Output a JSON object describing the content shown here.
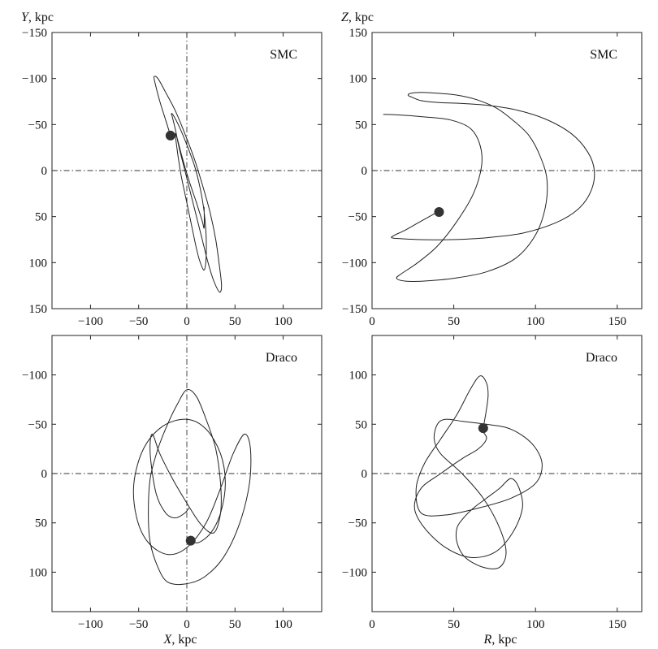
{
  "chart_data": [
    {
      "type": "line",
      "panel_label": "SMC",
      "xlabel": "",
      "ylabel_var": "Y",
      "ylabel_unit": ", kpc",
      "xlim": [
        -140,
        140
      ],
      "ylim": [
        -150,
        150
      ],
      "y_inverted": true,
      "xticks": [
        -100,
        -50,
        0,
        50,
        100
      ],
      "yticks": [
        -150,
        -100,
        -50,
        0,
        50,
        100,
        150
      ],
      "xtick_labels": [
        "−100",
        "−50",
        "0",
        "50",
        "100"
      ],
      "ytick_labels": [
        "−150",
        "−100",
        "−50",
        "0",
        "50",
        "100",
        "150"
      ],
      "reference_lines": {
        "x": 0,
        "y": 0
      },
      "series": [
        {
          "x": [
            -17,
            -22,
            -28,
            -33,
            -34,
            -30,
            -22,
            -12,
            -2,
            8,
            16,
            24,
            30,
            34,
            36,
            34,
            28,
            22,
            16,
            10,
            4,
            -2,
            -8,
            -12,
            -15,
            -16,
            -14,
            -8,
            0,
            8,
            14,
            18,
            20,
            20,
            18,
            14,
            10,
            6,
            2,
            -2,
            -6,
            -9,
            -11,
            -12,
            -10,
            -5,
            2,
            10,
            16,
            18,
            18
          ],
          "y": [
            -38,
            -55,
            -75,
            -95,
            -102,
            -100,
            -85,
            -65,
            -40,
            -12,
            15,
            45,
            75,
            105,
            125,
            132,
            120,
            100,
            75,
            50,
            25,
            0,
            -25,
            -45,
            -58,
            -62,
            -60,
            -48,
            -28,
            -5,
            20,
            45,
            70,
            95,
            108,
            100,
            85,
            65,
            45,
            25,
            5,
            -15,
            -30,
            -40,
            -35,
            -15,
            10,
            35,
            55,
            62,
            40
          ]
        }
      ],
      "marker": {
        "x": -17,
        "y": -38
      }
    },
    {
      "type": "line",
      "panel_label": "SMC",
      "xlabel": "",
      "ylabel_var": "Z",
      "ylabel_unit": ", kpc",
      "xlim": [
        0,
        165
      ],
      "ylim": [
        -150,
        150
      ],
      "y_inverted": false,
      "xticks": [
        0,
        50,
        100,
        150
      ],
      "yticks": [
        -150,
        -100,
        -50,
        0,
        50,
        100,
        150
      ],
      "xtick_labels": [
        "0",
        "50",
        "100",
        "150"
      ],
      "ytick_labels": [
        "−150",
        "−100",
        "−50",
        "0",
        "50",
        "100",
        "150"
      ],
      "reference_lines": {
        "y": 0
      },
      "series": [
        {
          "x": [
            41,
            35,
            28,
            20,
            14,
            12,
            18,
            30,
            48,
            70,
            92,
            112,
            126,
            134,
            136,
            132,
            122,
            106,
            88,
            70,
            54,
            40,
            30,
            24,
            22,
            24,
            30,
            40,
            52,
            64,
            76,
            86,
            96,
            103,
            107,
            106,
            100,
            88,
            70,
            50,
            32,
            20,
            15,
            18,
            28,
            40,
            52,
            62,
            67,
            66,
            60,
            48,
            34,
            20,
            9,
            7
          ],
          "y": [
            -44,
            -50,
            -57,
            -65,
            -70,
            -73,
            -74,
            -75,
            -75,
            -73,
            -68,
            -57,
            -42,
            -22,
            0,
            20,
            40,
            56,
            66,
            71,
            73,
            74,
            76,
            80,
            82,
            84,
            85,
            84,
            82,
            77,
            68,
            55,
            38,
            15,
            -10,
            -40,
            -70,
            -95,
            -110,
            -117,
            -120,
            -120,
            -117,
            -112,
            -100,
            -82,
            -55,
            -25,
            5,
            28,
            46,
            55,
            58,
            60,
            61,
            61
          ]
        }
      ],
      "marker": {
        "x": 41,
        "y": -45
      }
    },
    {
      "type": "line",
      "panel_label": "Draco",
      "xlabel_var": "X",
      "xlabel_unit": ", kpc",
      "ylabel": "",
      "xlim": [
        -140,
        140
      ],
      "ylim": [
        -140,
        140
      ],
      "y_inverted": true,
      "xticks": [
        -100,
        -50,
        0,
        50,
        100
      ],
      "yticks": [
        -100,
        -50,
        0,
        50,
        100
      ],
      "xtick_labels": [
        "−100",
        "−50",
        "0",
        "50",
        "100"
      ],
      "ytick_labels": [
        "−100",
        "−50",
        "0",
        "50",
        "100"
      ],
      "reference_lines": {
        "x": 0,
        "y": 0
      },
      "series": [
        {
          "x": [
            4,
            12,
            25,
            35,
            40,
            35,
            20,
            0,
            -25,
            -45,
            -55,
            -52,
            -40,
            -20,
            0,
            20,
            35,
            48,
            60,
            66,
            65,
            55,
            38,
            18,
            -2,
            -20,
            -30,
            -38,
            -40,
            -38,
            -30,
            -20,
            -10,
            0,
            10,
            20,
            30,
            35,
            35,
            28,
            15,
            0,
            -15,
            -28,
            -36,
            -38,
            -32,
            -22,
            -12,
            -2,
            2
          ],
          "y": [
            68,
            70,
            60,
            40,
            10,
            -20,
            -45,
            -55,
            -48,
            -25,
            10,
            45,
            70,
            82,
            75,
            50,
            15,
            -20,
            -40,
            -25,
            10,
            50,
            85,
            105,
            112,
            110,
            95,
            70,
            40,
            5,
            -25,
            -50,
            -70,
            -85,
            -78,
            -55,
            -25,
            10,
            40,
            60,
            52,
            30,
            5,
            -20,
            -40,
            -20,
            20,
            40,
            45,
            40,
            35
          ]
        }
      ],
      "marker": {
        "x": 4,
        "y": 68
      }
    },
    {
      "type": "line",
      "panel_label": "Draco",
      "xlabel_var": "R",
      "xlabel_unit": ", kpc",
      "ylabel": "",
      "xlim": [
        0,
        165
      ],
      "ylim": [
        -140,
        140
      ],
      "y_inverted": false,
      "xticks": [
        0,
        50,
        100,
        150
      ],
      "yticks": [
        -100,
        -50,
        0,
        50,
        100
      ],
      "xtick_labels": [
        "0",
        "50",
        "100",
        "150"
      ],
      "ytick_labels": [
        "−100",
        "−50",
        "0",
        "50",
        "100"
      ],
      "reference_lines": {
        "y": 0
      },
      "series": [
        {
          "x": [
            68,
            70,
            71,
            70,
            66,
            60,
            52,
            42,
            32,
            27,
            30,
            45,
            65,
            85,
            100,
            104,
            98,
            85,
            70,
            55,
            45,
            40,
            38,
            42,
            55,
            68,
            78,
            82,
            78,
            68,
            57,
            52,
            52,
            56,
            62,
            70,
            78,
            85,
            90,
            92,
            86,
            75,
            60,
            45,
            32,
            26,
            30,
            42,
            55,
            65,
            70,
            68,
            66
          ],
          "y": [
            46,
            65,
            80,
            92,
            99,
            85,
            60,
            35,
            10,
            -15,
            -40,
            -42,
            -35,
            -25,
            -10,
            10,
            30,
            45,
            50,
            53,
            55,
            50,
            35,
            20,
            0,
            -25,
            -55,
            -80,
            -95,
            -95,
            -85,
            -70,
            -55,
            -45,
            -35,
            -25,
            -15,
            -5,
            -15,
            -35,
            -60,
            -80,
            -85,
            -75,
            -55,
            -35,
            -15,
            0,
            15,
            25,
            35,
            42,
            45
          ]
        }
      ],
      "marker": {
        "x": 68,
        "y": 46
      }
    }
  ]
}
